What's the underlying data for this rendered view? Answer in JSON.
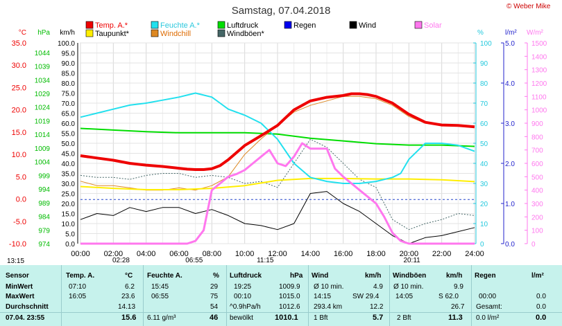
{
  "header": {
    "title": "Samstag, 07.04.2018",
    "copyright": "© Weber Mike"
  },
  "legend": [
    {
      "label": "Temp. A.*",
      "color": "#ee0000"
    },
    {
      "label": "Feuchte A.*",
      "color": "#22e0ee"
    },
    {
      "label": "Luftdruck",
      "color": "#00dd00"
    },
    {
      "label": "Regen",
      "color": "#0000ee"
    },
    {
      "label": "Wind",
      "color": "#000000"
    },
    {
      "label": "Solar",
      "color": "#ff77ee"
    },
    {
      "label": "Taupunkt*",
      "color": "#ffee00"
    },
    {
      "label": "Windchill",
      "color": "#dd8822"
    },
    {
      "label": "Windböen*",
      "color": "#446666"
    }
  ],
  "axis_units": {
    "temp": "°C",
    "hpa": "hPa",
    "kmh": "km/h",
    "pct": "%",
    "rain": "l/m²",
    "solar": "W/m²"
  },
  "chart_data": {
    "type": "line",
    "title": "Samstag, 07.04.2018",
    "x_ticks": [
      "00:00",
      "02:00",
      "04:00",
      "06:00",
      "08:00",
      "10:00",
      "12:00",
      "14:00",
      "16:00",
      "18:00",
      "20:00",
      "22:00",
      "24:00"
    ],
    "axes": {
      "temp": {
        "label": "°C",
        "range": [
          -10,
          35
        ],
        "ticks": [
          "35.0",
          "30.0",
          "25.0",
          "20.0",
          "15.0",
          "10.0",
          "5.0",
          "0.0",
          "-5.0",
          "-10.0"
        ],
        "color": "#ee0000"
      },
      "hpa": {
        "label": "hPa",
        "range": [
          974,
          1047.5
        ],
        "ticks": [
          "1044",
          "1039",
          "1034",
          "1029",
          "1024",
          "1019",
          "1014",
          "1009",
          "1004",
          "999",
          "994",
          "989",
          "984",
          "979",
          "974"
        ],
        "color": "#00bb00"
      },
      "kmh": {
        "label": "km/h",
        "range": [
          0,
          100
        ],
        "ticks": [
          "100.0",
          "95.0",
          "90.0",
          "85.0",
          "80.0",
          "75.0",
          "70.0",
          "65.0",
          "60.0",
          "55.0",
          "50.0",
          "45.0",
          "40.0",
          "35.0",
          "30.0",
          "25.0",
          "20.0",
          "15.0",
          "10.0",
          "5.0",
          "0.0"
        ],
        "color": "#000000"
      },
      "pct": {
        "label": "%",
        "range": [
          0,
          100
        ],
        "ticks": [
          "100",
          "90",
          "80",
          "70",
          "60",
          "50",
          "40",
          "30",
          "20",
          "10",
          "0"
        ],
        "color": "#22c8dd"
      },
      "rain": {
        "label": "l/m²",
        "range": [
          0,
          5
        ],
        "ticks": [
          "5.0",
          "4.0",
          "3.0",
          "2.0",
          "1.0",
          "0.0"
        ],
        "color": "#2222cc"
      },
      "solar": {
        "label": "W/m²",
        "range": [
          0,
          1500
        ],
        "ticks": [
          "1500",
          "1400",
          "1300",
          "1200",
          "1100",
          "1000",
          "900",
          "800",
          "700",
          "600",
          "500",
          "400",
          "300",
          "200",
          "100",
          "0"
        ],
        "color": "#ff77ee"
      }
    },
    "series": [
      {
        "name": "Temp. A.*",
        "axis": "temp",
        "color": "#ee0000",
        "x": [
          0,
          1,
          2,
          3,
          4,
          5,
          6,
          6.5,
          7,
          7.5,
          8,
          8.5,
          9,
          10,
          11,
          12,
          13,
          14,
          15,
          16,
          16.5,
          17,
          17.5,
          18,
          19,
          20,
          21,
          22,
          23,
          24
        ],
        "y": [
          9.7,
          9.2,
          8.7,
          8.0,
          7.6,
          7.3,
          6.9,
          6.7,
          6.6,
          6.6,
          6.8,
          7.5,
          8.8,
          12.0,
          14.2,
          16.5,
          20.0,
          22.0,
          22.8,
          23.2,
          23.6,
          23.6,
          23.4,
          23.0,
          21.5,
          19.0,
          17.2,
          16.6,
          16.5,
          16.2
        ]
      },
      {
        "name": "Feuchte A.*",
        "axis": "pct",
        "color": "#22e0ee",
        "x": [
          0,
          1,
          2,
          3,
          4,
          5,
          6,
          6.5,
          7,
          7.5,
          8,
          8.5,
          9,
          10,
          11,
          12,
          13,
          14,
          15,
          16,
          17,
          18,
          19,
          19.5,
          20,
          21,
          22,
          23,
          24
        ],
        "y": [
          63,
          65,
          67,
          69,
          70,
          71.5,
          73,
          74,
          75,
          74,
          73,
          70,
          67,
          64,
          60,
          52,
          40,
          33,
          31,
          30,
          30,
          31,
          33,
          35,
          42,
          50,
          50,
          49,
          46
        ]
      },
      {
        "name": "Luftdruck",
        "axis": "hpa",
        "color": "#00dd00",
        "x": [
          0,
          2,
          4,
          6,
          8,
          10,
          12,
          14,
          16,
          18,
          20,
          22,
          24
        ],
        "y": [
          1016.2,
          1015.6,
          1015,
          1014.6,
          1014.6,
          1014.6,
          1014.1,
          1012.6,
          1011.6,
          1010.6,
          1010.1,
          1010.1,
          1009.6
        ]
      },
      {
        "name": "Taupunkt*",
        "axis": "temp",
        "color": "#ffee00",
        "x": [
          0,
          2,
          4,
          6,
          8,
          10,
          12,
          14,
          16,
          18,
          20,
          22,
          24
        ],
        "y": [
          2.8,
          2.4,
          2.1,
          2.1,
          2.4,
          3.0,
          4.2,
          4.6,
          4.6,
          4.5,
          4.5,
          4.3,
          3.9
        ]
      },
      {
        "name": "Windchill",
        "axis": "temp",
        "color": "#dd8822",
        "x": [
          0,
          1,
          2,
          3,
          4,
          5,
          6,
          7,
          8,
          9,
          10,
          11,
          12,
          13,
          14,
          15,
          16,
          17,
          18,
          19,
          20,
          21,
          22,
          23,
          24
        ],
        "y": [
          4.0,
          3.0,
          3.0,
          2.5,
          2.0,
          2.0,
          2.5,
          2.0,
          3.0,
          5.0,
          10.0,
          13.5,
          16.5,
          19.5,
          21.0,
          22.0,
          23.0,
          23.0,
          22.5,
          21.0,
          18.5,
          17.0,
          16.6,
          16.5,
          16.2
        ]
      },
      {
        "name": "Wind",
        "axis": "kmh",
        "color": "#000000",
        "x": [
          0,
          1,
          2,
          3,
          4,
          5,
          6,
          7,
          8,
          9,
          10,
          11,
          12,
          13,
          14,
          15,
          16,
          17,
          18,
          19,
          20,
          21,
          22,
          23,
          24
        ],
        "y": [
          12,
          15,
          14,
          18,
          16,
          18,
          18,
          15,
          17,
          14,
          10,
          9,
          7,
          10,
          25,
          26,
          20,
          16,
          10,
          4,
          0,
          3,
          4,
          6,
          8
        ]
      },
      {
        "name": "Windböen*",
        "axis": "kmh",
        "color": "#446666",
        "x": [
          0,
          1,
          2,
          3,
          4,
          5,
          6,
          7,
          8,
          9,
          10,
          11,
          12,
          13,
          14,
          15,
          16,
          17,
          18,
          19,
          20,
          21,
          22,
          23,
          24
        ],
        "y": [
          34,
          33,
          33,
          32,
          34,
          35,
          35,
          33,
          34,
          33,
          30,
          31,
          28,
          40,
          52,
          48,
          40,
          32,
          28,
          12,
          7,
          10,
          12,
          15,
          14
        ]
      },
      {
        "name": "Solar",
        "axis": "solar",
        "color": "#ff77ee",
        "x": [
          0,
          6.5,
          7.0,
          7.5,
          8.0,
          8.5,
          9.0,
          9.5,
          10.0,
          10.5,
          11.0,
          11.5,
          12.0,
          12.5,
          13.0,
          13.5,
          14.0,
          15.0,
          15.5,
          16.0,
          17.0,
          18.0,
          18.5,
          19.0,
          19.5,
          20.0,
          24
        ],
        "y": [
          0,
          0,
          20,
          100,
          400,
          450,
          500,
          520,
          550,
          600,
          650,
          700,
          600,
          580,
          650,
          750,
          710,
          710,
          560,
          500,
          400,
          300,
          200,
          80,
          20,
          0,
          0
        ]
      }
    ],
    "dashed_lines": [
      {
        "name": "kmh-grid-level",
        "axis": "kmh",
        "y": 22,
        "color": "#2244cc"
      }
    ],
    "sun_markers": [
      {
        "label": "13:15",
        "x": -0.4
      },
      {
        "label": "02:28",
        "x": 2.47
      },
      {
        "label": "06:55",
        "x": 6.92
      },
      {
        "label": "11:15",
        "x": 11.25
      },
      {
        "label": "20:11",
        "x": 20.18
      }
    ]
  },
  "table": {
    "row_labels": [
      "Sensor",
      "MinWert",
      "MaxWert",
      "Durchschnitt",
      "07.04. 23:55"
    ],
    "temp": {
      "h": "Temp. A.",
      "u": "°C",
      "min_t": "07:10",
      "min_v": "6.2",
      "max_t": "16:05",
      "max_v": "23.6",
      "avg": "14.13",
      "cur": "15.6"
    },
    "hum": {
      "h": "Feuchte A.",
      "u": "%",
      "min_t": "15:45",
      "min_v": "29",
      "max_t": "06:55",
      "max_v": "75",
      "avg": "54",
      "extra": "6.11 g/m³",
      "cur": "46"
    },
    "press": {
      "h": "Luftdruck",
      "u": "hPa",
      "min_t": "19:25",
      "min_v": "1009.9",
      "max_t": "00:10",
      "max_v": "1015.0",
      "avg_l": "^0.9hPa/h",
      "avg": "1012.6",
      "extra": "bewölkt",
      "cur": "1010.1"
    },
    "wind": {
      "h": "Wind",
      "u": "km/h",
      "r1_l": "Ø 10 min.",
      "r1_v": "4.9",
      "r2_l": "14:15",
      "r2_m": "SW 29.4",
      "r3_l": "293.4 km",
      "r3_v": "12.2",
      "r4_l": "1 Bft",
      "cur": "5.7"
    },
    "gust": {
      "h": "Windböen",
      "u": "km/h",
      "r1_l": "Ø 10 min.",
      "r1_v": "9.9",
      "r2_l": "14:05",
      "r2_m": "S 62.0",
      "r3_v": "26.7",
      "r4_l": "2 Bft",
      "cur": "11.3"
    },
    "rain": {
      "h": "Regen",
      "u": "l/m²",
      "r2_l": "00:00",
      "r2_v": "0.0",
      "r3_l": "Gesamt:",
      "r3_v": "0.0",
      "r4_l": "0.0 l/m²",
      "cur": "0.0"
    }
  }
}
